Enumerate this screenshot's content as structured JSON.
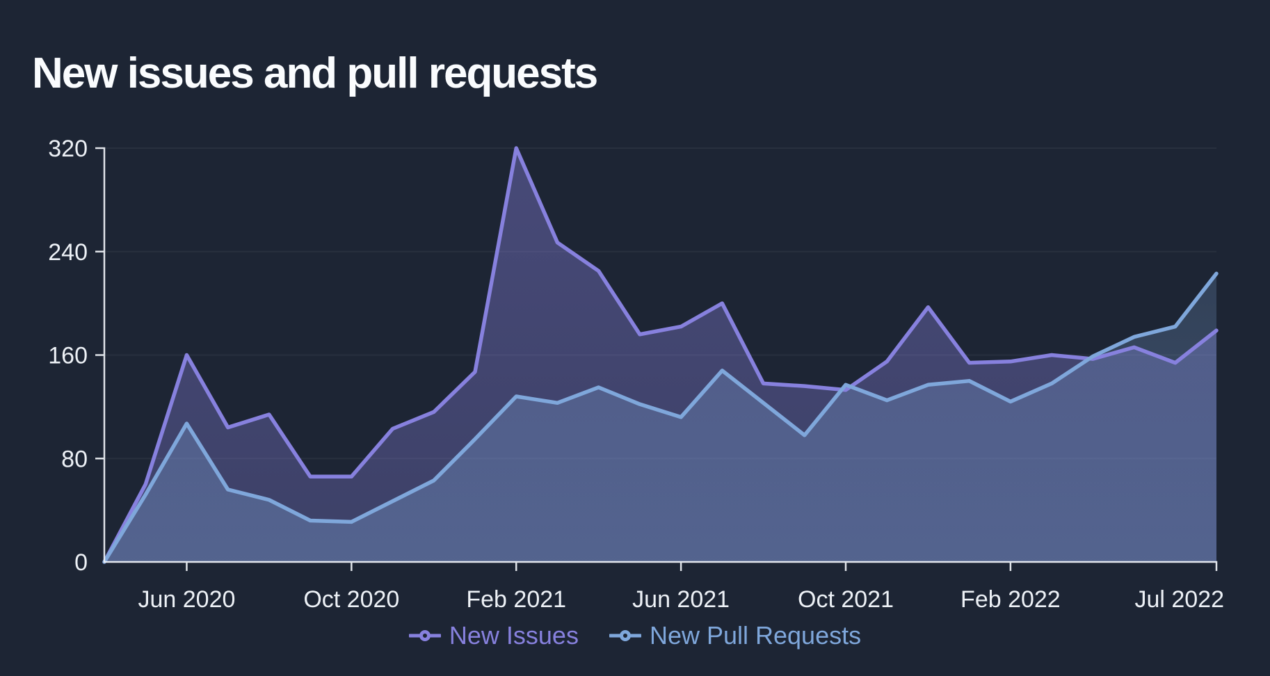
{
  "page": {
    "title": "New issues and pull requests"
  },
  "legend": [
    {
      "label": "New Issues",
      "color": "#8781de",
      "marker_icon": "line-dot-marker"
    },
    {
      "label": "New Pull Requests",
      "color": "#7fa7db",
      "marker_icon": "line-dot-marker"
    }
  ],
  "chart_data": {
    "type": "area",
    "title": "New issues and pull requests",
    "xlabel": "",
    "ylabel": "",
    "x": [
      "Apr 2020",
      "May 2020",
      "Jun 2020",
      "Jul 2020",
      "Aug 2020",
      "Sep 2020",
      "Oct 2020",
      "Nov 2020",
      "Dec 2020",
      "Jan 2021",
      "Feb 2021",
      "Mar 2021",
      "Apr 2021",
      "May 2021",
      "Jun 2021",
      "Jul 2021",
      "Aug 2021",
      "Sep 2021",
      "Oct 2021",
      "Nov 2021",
      "Dec 2021",
      "Jan 2022",
      "Feb 2022",
      "Mar 2022",
      "Apr 2022",
      "May 2022",
      "Jun 2022",
      "Jul 2022"
    ],
    "series": [
      {
        "name": "New Issues",
        "color": "#8781de",
        "fill_opacity": [
          0.4,
          0.3
        ],
        "values": [
          0,
          60,
          160,
          104,
          114,
          66,
          66,
          103,
          116,
          147,
          320,
          247,
          225,
          176,
          182,
          200,
          138,
          136,
          133,
          155,
          197,
          154,
          155,
          160,
          157,
          166,
          154,
          179
        ]
      },
      {
        "name": "New Pull Requests",
        "color": "#7fa7db",
        "fill_opacity": [
          0.16,
          0.34
        ],
        "values": [
          0,
          52,
          107,
          56,
          48,
          32,
          31,
          47,
          63,
          95,
          128,
          123,
          135,
          122,
          112,
          148,
          123,
          98,
          137,
          125,
          137,
          140,
          124,
          138,
          159,
          174,
          182,
          223
        ]
      }
    ],
    "ylim": [
      0,
      320
    ],
    "y_ticks": [
      0,
      80,
      160,
      240,
      320
    ],
    "x_tick_labels": [
      "Jun 2020",
      "Oct 2020",
      "Feb 2021",
      "Jun 2021",
      "Oct 2021",
      "Feb 2022",
      "Jul 2022"
    ],
    "x_tick_month_indices": [
      2,
      6,
      10,
      14,
      18,
      22,
      27
    ],
    "grid": "faint horizontal lines at y ticks",
    "legend_position": "bottom center",
    "background": "#1d2534",
    "axis_color": "#f1f4f8"
  }
}
